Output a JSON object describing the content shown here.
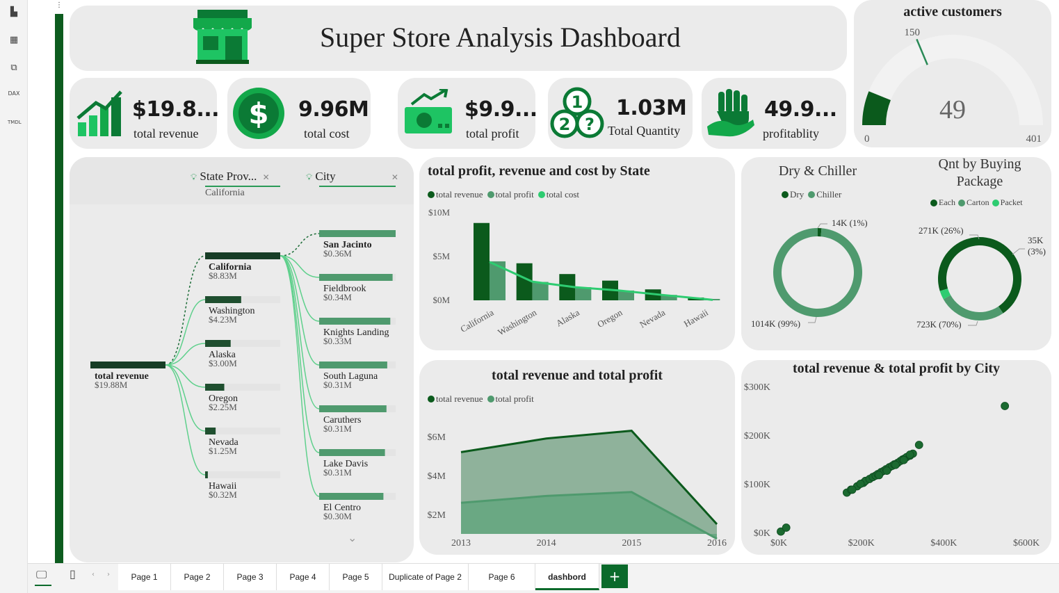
{
  "title": "Super Store Analysis Dashboard",
  "kpis": [
    {
      "value": "$19.8...",
      "label": "total revenue",
      "icon": "growth-chart-icon"
    },
    {
      "value": "9.96M",
      "label": "total cost",
      "icon": "dollar-coin-icon"
    },
    {
      "value": "$9.9...",
      "label": "total profit",
      "icon": "money-bill-icon"
    },
    {
      "value": "1.03M",
      "label": "Total Quantity",
      "icon": "coins-question-icon"
    },
    {
      "value": "49.9...",
      "label": "profitablity",
      "icon": "hand-icon"
    }
  ],
  "gauge": {
    "title": "active customers",
    "value": "49",
    "min": "0",
    "max": "401",
    "target": "150",
    "value_num": 49,
    "max_num": 401,
    "target_num": 150
  },
  "decomp": {
    "filters": [
      {
        "label": "State Prov...",
        "sub": "California"
      },
      {
        "label": "City",
        "sub": ""
      }
    ],
    "root": {
      "name": "total revenue",
      "value": "$19.88M"
    },
    "states": [
      {
        "name": "California",
        "value": "$8.83M",
        "frac": 1.0
      },
      {
        "name": "Washington",
        "value": "$4.23M",
        "frac": 0.48
      },
      {
        "name": "Alaska",
        "value": "$3.00M",
        "frac": 0.34
      },
      {
        "name": "Oregon",
        "value": "$2.25M",
        "frac": 0.255
      },
      {
        "name": "Nevada",
        "value": "$1.25M",
        "frac": 0.14
      },
      {
        "name": "Hawaii",
        "value": "$0.32M",
        "frac": 0.036
      }
    ],
    "cities": [
      {
        "name": "San Jacinto",
        "value": "$0.36M",
        "frac": 1.0
      },
      {
        "name": "Fieldbrook",
        "value": "$0.34M",
        "frac": 0.96
      },
      {
        "name": "Knights Landing",
        "value": "$0.33M",
        "frac": 0.93
      },
      {
        "name": "South Laguna",
        "value": "$0.31M",
        "frac": 0.89
      },
      {
        "name": "Caruthers",
        "value": "$0.31M",
        "frac": 0.88
      },
      {
        "name": "Lake Davis",
        "value": "$0.31M",
        "frac": 0.86
      },
      {
        "name": "El Centro",
        "value": "$0.30M",
        "frac": 0.84
      }
    ]
  },
  "colors": {
    "dark": "#0b5a1c",
    "mid": "#4f9a6e",
    "bright": "#2ecc71",
    "card": "#ebebeb",
    "accent": "#0b6a2b"
  },
  "chart_data": [
    {
      "type": "bar",
      "title": "total profit, revenue and cost by State",
      "categories": [
        "California",
        "Washington",
        "Alaska",
        "Oregon",
        "Nevada",
        "Hawaii"
      ],
      "series": [
        {
          "name": "total revenue",
          "values": [
            8.83,
            4.23,
            3.0,
            2.25,
            1.25,
            0.32
          ]
        },
        {
          "name": "total profit",
          "values": [
            4.45,
            2.1,
            1.5,
            1.12,
            0.62,
            0.16
          ]
        },
        {
          "name": "total cost",
          "values": [
            4.38,
            2.13,
            1.5,
            1.13,
            0.63,
            0.16
          ]
        }
      ],
      "yticks": [
        "$0M",
        "$5M",
        "$10M"
      ],
      "ylim": [
        0,
        10
      ]
    },
    {
      "type": "donut",
      "title": "Dry & Chiller",
      "series": [
        {
          "name": "Dry",
          "value": 14,
          "label": "14K (1%)"
        },
        {
          "name": "Chiller",
          "value": 1014,
          "label": "1014K (99%)"
        }
      ]
    },
    {
      "type": "donut",
      "title": "Qnt by Buying Package",
      "series": [
        {
          "name": "Each",
          "value": 723,
          "label": "723K (70%)"
        },
        {
          "name": "Carton",
          "value": 271,
          "label": "271K (26%)"
        },
        {
          "name": "Packet",
          "value": 35,
          "label": "35K (3%)"
        }
      ]
    },
    {
      "type": "area",
      "title": "total revenue and total profit",
      "x": [
        "2013",
        "2014",
        "2015",
        "2016"
      ],
      "series": [
        {
          "name": "total revenue",
          "values": [
            5.2,
            5.9,
            6.3,
            1.5
          ]
        },
        {
          "name": "total profit",
          "values": [
            2.6,
            2.95,
            3.15,
            0.75
          ]
        }
      ],
      "yticks": [
        "$2M",
        "$4M",
        "$6M"
      ],
      "ylim": [
        1.0,
        7.0
      ]
    },
    {
      "type": "scatter",
      "title": "total revenue & total profit by City",
      "xticks": [
        "$0K",
        "$200K",
        "$400K",
        "$600K"
      ],
      "yticks": [
        "$0K",
        "$100K",
        "$200K",
        "$300K"
      ],
      "xlim": [
        0,
        600
      ],
      "ylim": [
        0,
        300
      ],
      "points": [
        [
          5,
          2
        ],
        [
          18,
          10
        ],
        [
          165,
          82
        ],
        [
          175,
          88
        ],
        [
          190,
          95
        ],
        [
          205,
          102
        ],
        [
          210,
          106
        ],
        [
          220,
          110
        ],
        [
          228,
          114
        ],
        [
          235,
          117
        ],
        [
          240,
          120
        ],
        [
          248,
          124
        ],
        [
          255,
          127
        ],
        [
          260,
          130
        ],
        [
          268,
          134
        ],
        [
          275,
          137
        ],
        [
          280,
          140
        ],
        [
          288,
          143
        ],
        [
          295,
          147
        ],
        [
          300,
          150
        ],
        [
          305,
          152
        ],
        [
          310,
          155
        ],
        [
          318,
          158
        ],
        [
          325,
          162
        ],
        [
          340,
          180
        ],
        [
          548,
          260
        ],
        [
          178,
          88
        ],
        [
          198,
          100
        ],
        [
          243,
          118
        ],
        [
          262,
          127
        ],
        [
          283,
          139
        ],
        [
          303,
          149
        ],
        [
          318,
          160
        ]
      ]
    }
  ],
  "tabs": [
    "Page 1",
    "Page 2",
    "Page 3",
    "Page 4",
    "Page 5",
    "Duplicate of Page 2",
    "Page 6",
    "dashbord"
  ],
  "active_tab": "dashbord",
  "rail_icons": [
    "report-view-icon",
    "table-view-icon",
    "model-view-icon",
    "dax-query-icon",
    "tmdl-view-icon"
  ]
}
